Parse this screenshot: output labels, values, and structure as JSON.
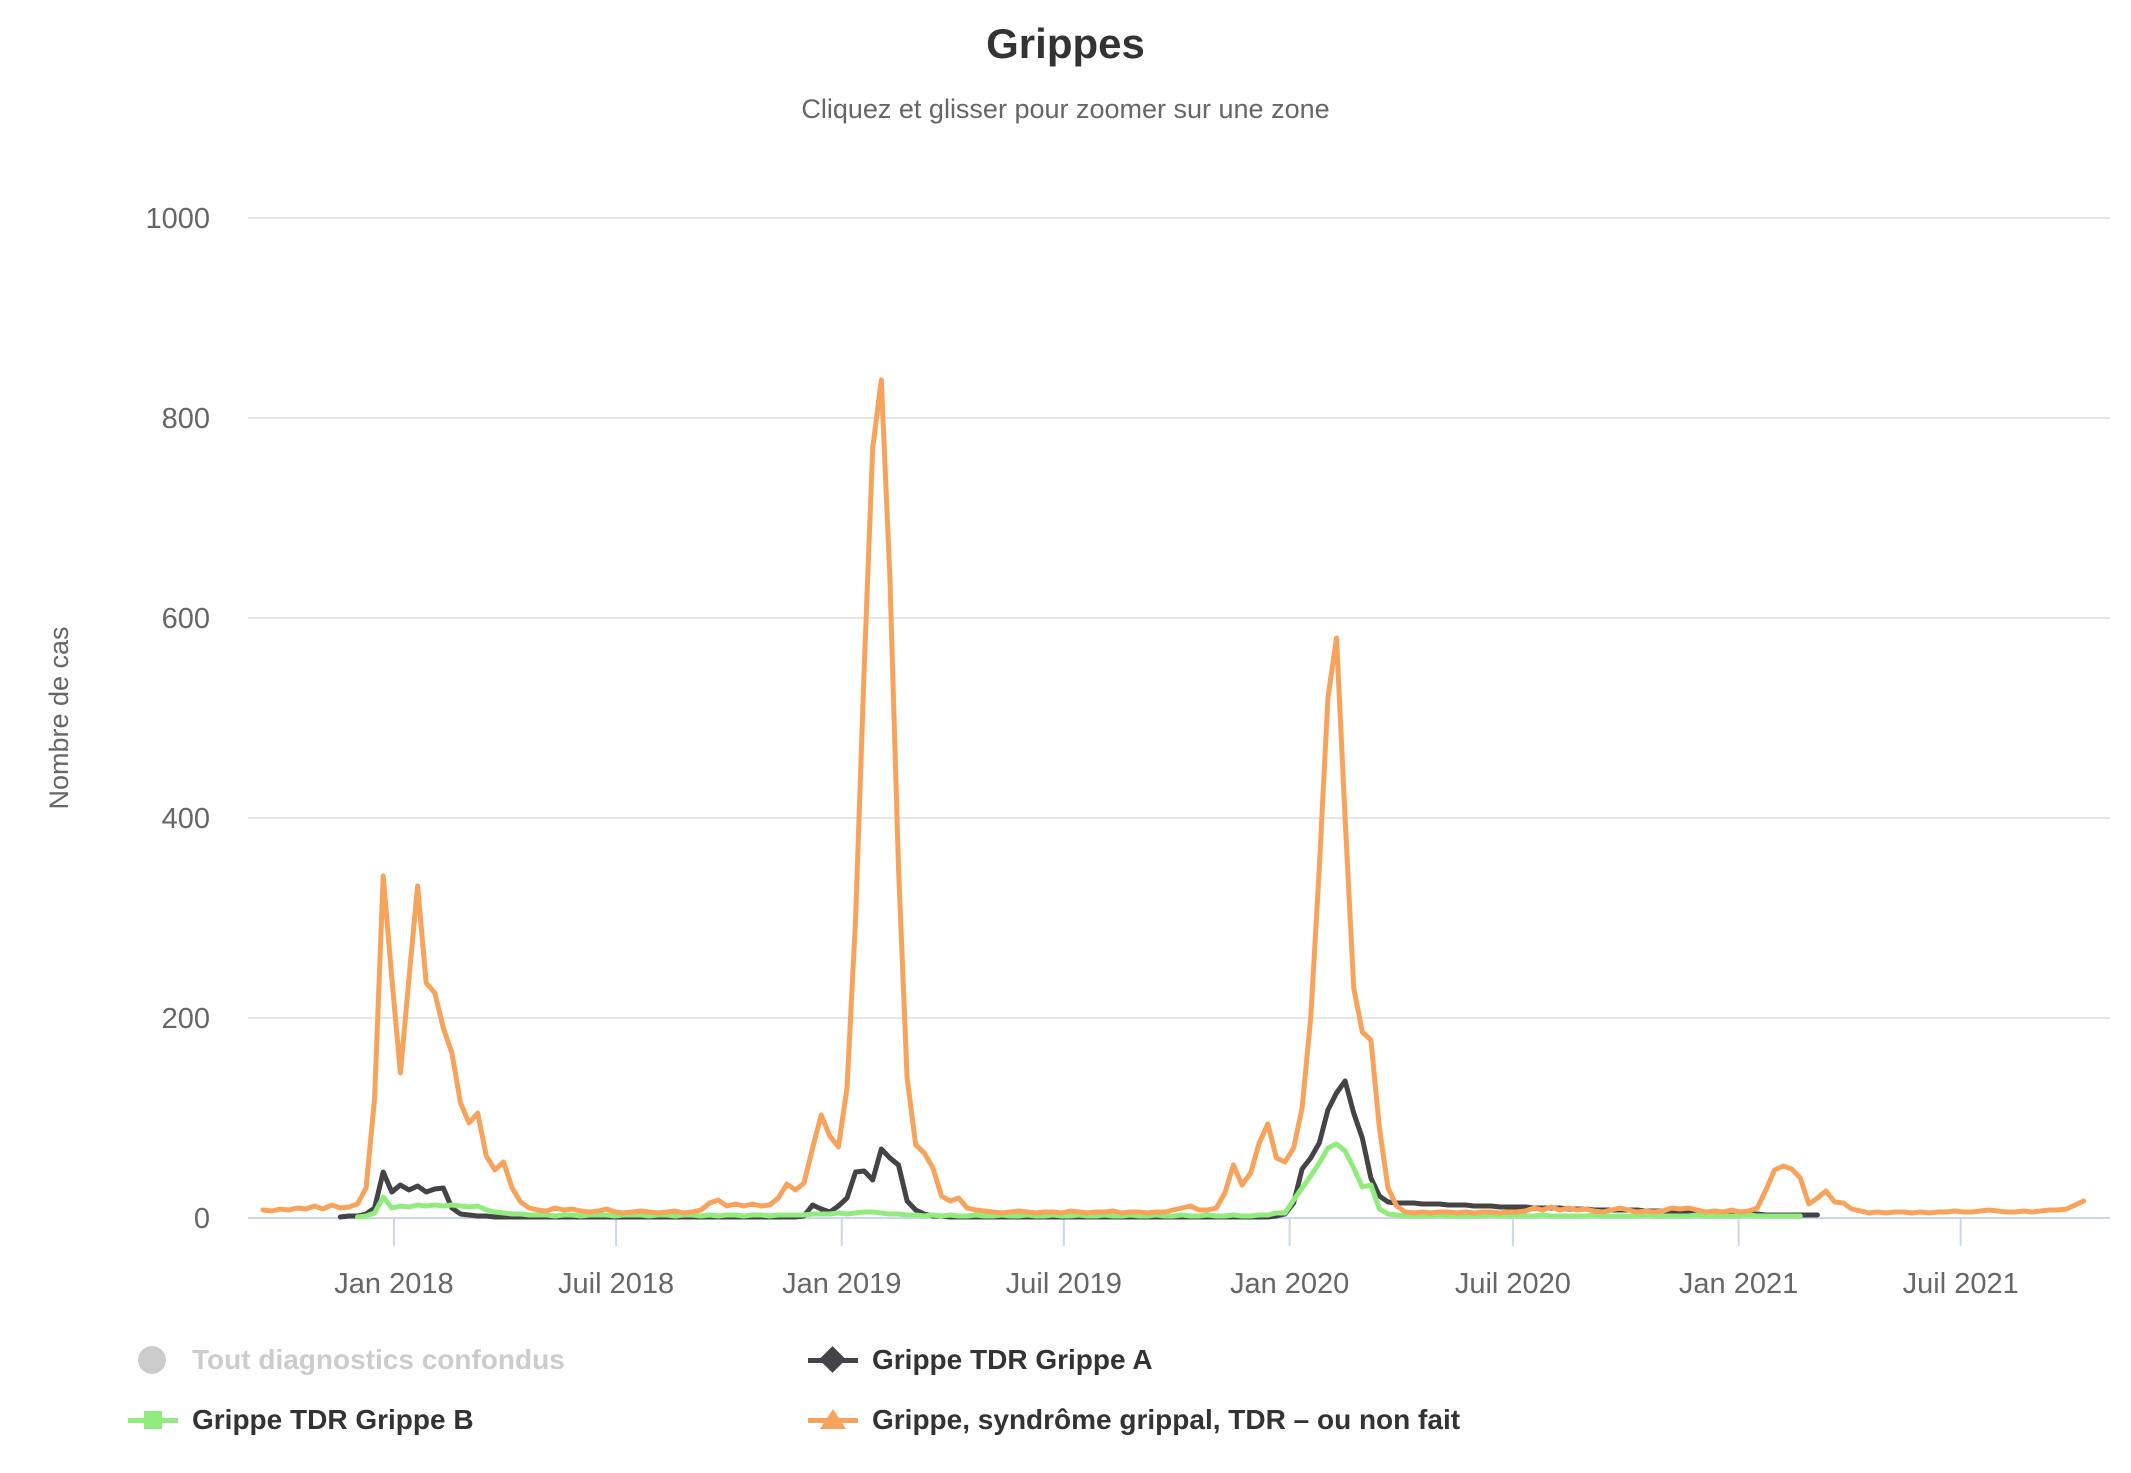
{
  "header": {
    "title": "Grippes",
    "subtitle": "Cliquez et glisser pour zoomer sur une zone"
  },
  "chart_data": {
    "type": "line",
    "title": "Grippes",
    "subtitle": "Cliquez et glisser pour zoomer sur une zone",
    "ylabel": "Nombre de cas",
    "xlabel": "",
    "ylim": [
      0,
      1000
    ],
    "y_ticks": [
      0,
      200,
      400,
      600,
      800,
      1000
    ],
    "grid": "horizontal",
    "legend_position": "bottom",
    "x_unit": "weeks since 2017-09-17",
    "x_ticks": [
      {
        "label": "Jan 2018",
        "week": 15.25
      },
      {
        "label": "Juil 2018",
        "week": 41.11
      },
      {
        "label": "Jan 2019",
        "week": 67.39
      },
      {
        "label": "Juil 2019",
        "week": 93.25
      },
      {
        "label": "Jan 2020",
        "week": 119.54
      },
      {
        "label": "Juil 2020",
        "week": 145.54
      },
      {
        "label": "Jan 2021",
        "week": 171.82
      },
      {
        "label": "Juil 2021",
        "week": 197.68
      }
    ],
    "colors": {
      "disabled": "#cccccc",
      "grippe_a": "#434348",
      "grippe_b": "#90ed7d",
      "syndrome": "#f7a35c",
      "gridline": "#e6e6e6",
      "axis_line": "#ccd6eb",
      "axis_label": "#666666"
    },
    "series": [
      {
        "name": "Tout diagnostics confondus",
        "marker": "circle",
        "color": "#cccccc",
        "visible": false,
        "values": []
      },
      {
        "name": "Grippe TDR Grippe A",
        "marker": "diamond",
        "color": "#434348",
        "visible": true,
        "values": [
          null,
          null,
          null,
          null,
          null,
          null,
          null,
          null,
          null,
          1,
          2,
          2,
          4,
          10,
          46,
          26,
          33,
          28,
          32,
          26,
          29,
          30,
          10,
          4,
          3,
          2,
          2,
          1,
          1,
          1,
          1,
          1,
          1,
          1,
          1,
          1,
          1,
          1,
          1,
          1,
          1,
          1,
          1,
          1,
          1,
          1,
          1,
          1,
          1,
          1,
          1,
          1,
          1,
          1,
          1,
          1,
          1,
          1,
          1,
          1,
          1,
          1,
          1,
          2,
          13,
          9,
          6,
          12,
          20,
          46,
          47,
          38,
          69,
          60,
          53,
          17,
          8,
          4,
          2,
          2,
          1,
          1,
          1,
          1,
          1,
          1,
          1,
          1,
          1,
          1,
          1,
          1,
          1,
          1,
          1,
          1,
          1,
          1,
          1,
          1,
          1,
          1,
          1,
          1,
          1,
          1,
          1,
          1,
          1,
          1,
          1,
          1,
          1,
          1,
          1,
          1,
          1,
          1,
          2,
          4,
          15,
          49,
          60,
          75,
          108,
          125,
          137,
          105,
          80,
          40,
          22,
          16,
          15,
          15,
          15,
          14,
          14,
          14,
          13,
          13,
          13,
          12,
          12,
          12,
          11,
          11,
          11,
          11,
          10,
          10,
          10,
          10,
          9,
          9,
          9,
          8,
          8,
          8,
          8,
          8,
          8,
          7,
          7,
          7,
          7,
          6,
          6,
          6,
          5,
          5,
          5,
          5,
          4,
          4,
          4,
          3,
          3,
          3,
          3,
          3,
          3,
          3,
          null,
          null,
          null,
          null,
          null,
          null,
          null,
          null,
          null,
          null,
          null,
          null,
          null,
          null,
          null,
          null,
          null,
          null,
          null,
          null,
          null,
          null,
          null,
          null,
          null,
          null,
          null,
          null,
          null,
          null,
          null
        ]
      },
      {
        "name": "Grippe TDR Grippe B",
        "marker": "square",
        "color": "#90ed7d",
        "visible": true,
        "values": [
          null,
          null,
          null,
          null,
          null,
          null,
          null,
          null,
          null,
          null,
          null,
          1,
          2,
          5,
          21,
          10,
          12,
          11,
          13,
          12,
          13,
          12,
          13,
          12,
          11,
          12,
          8,
          6,
          5,
          4,
          4,
          3,
          3,
          3,
          2,
          3,
          3,
          2,
          3,
          3,
          3,
          2,
          3,
          3,
          3,
          2,
          3,
          3,
          2,
          3,
          3,
          2,
          3,
          2,
          3,
          3,
          2,
          3,
          3,
          2,
          3,
          3,
          3,
          3,
          4,
          4,
          4,
          5,
          4,
          5,
          6,
          6,
          5,
          4,
          4,
          3,
          3,
          2,
          3,
          2,
          3,
          2,
          2,
          3,
          2,
          2,
          3,
          2,
          2,
          3,
          2,
          2,
          3,
          2,
          2,
          3,
          2,
          2,
          3,
          2,
          2,
          3,
          2,
          2,
          3,
          2,
          2,
          3,
          2,
          2,
          3,
          2,
          2,
          3,
          2,
          2,
          3,
          3,
          5,
          5,
          18,
          30,
          42,
          55,
          70,
          74,
          67,
          50,
          31,
          33,
          9,
          4,
          3,
          2,
          2,
          2,
          2,
          3,
          2,
          2,
          2,
          2,
          2,
          3,
          2,
          2,
          2,
          2,
          2,
          3,
          2,
          2,
          2,
          2,
          2,
          3,
          2,
          2,
          2,
          2,
          2,
          3,
          2,
          2,
          2,
          2,
          2,
          3,
          2,
          2,
          2,
          2,
          2,
          3,
          2,
          2,
          2,
          2,
          2,
          2,
          null,
          null,
          null,
          null,
          null,
          null,
          null,
          null,
          null,
          null,
          null,
          null,
          null,
          null,
          null,
          null,
          null,
          null,
          null,
          null,
          null,
          null,
          null,
          null,
          null,
          null,
          null,
          null,
          null,
          null,
          null,
          null,
          null
        ]
      },
      {
        "name": "Grippe, syndrôme grippal, TDR – ou non fait",
        "marker": "triangle",
        "color": "#f7a35c",
        "visible": true,
        "values": [
          8,
          7,
          9,
          8,
          10,
          9,
          12,
          9,
          13,
          10,
          11,
          14,
          30,
          120,
          342,
          240,
          145,
          240,
          332,
          235,
          225,
          190,
          165,
          115,
          95,
          105,
          62,
          48,
          56,
          30,
          16,
          10,
          8,
          7,
          10,
          8,
          9,
          7,
          6,
          7,
          9,
          6,
          5,
          6,
          7,
          6,
          5,
          6,
          7,
          5,
          6,
          8,
          15,
          18,
          12,
          14,
          12,
          14,
          12,
          13,
          20,
          34,
          28,
          35,
          70,
          103,
          82,
          71,
          130,
          300,
          550,
          770,
          838,
          640,
          350,
          140,
          73,
          65,
          50,
          22,
          17,
          20,
          10,
          8,
          7,
          6,
          5,
          6,
          7,
          6,
          5,
          6,
          6,
          5,
          7,
          6,
          5,
          6,
          6,
          7,
          5,
          6,
          6,
          5,
          6,
          6,
          8,
          10,
          12,
          8,
          8,
          10,
          25,
          53,
          33,
          45,
          75,
          94,
          60,
          56,
          70,
          110,
          200,
          350,
          520,
          580,
          400,
          230,
          186,
          178,
          90,
          30,
          12,
          6,
          5,
          6,
          5,
          6,
          6,
          5,
          6,
          5,
          6,
          6,
          5,
          6,
          6,
          7,
          10,
          8,
          11,
          8,
          10,
          8,
          9,
          7,
          6,
          8,
          10,
          8,
          6,
          7,
          6,
          7,
          10,
          9,
          10,
          8,
          6,
          7,
          6,
          8,
          6,
          7,
          10,
          28,
          48,
          52,
          49,
          40,
          14,
          20,
          27,
          16,
          15,
          9,
          7,
          5,
          6,
          5,
          6,
          6,
          5,
          6,
          5,
          6,
          6,
          7,
          6,
          6,
          7,
          8,
          7,
          6,
          6,
          7,
          6,
          7,
          8,
          8,
          9,
          13,
          17
        ]
      }
    ]
  },
  "legend": {
    "items": [
      {
        "label": "Tout diagnostics confondus",
        "marker": "circle",
        "color": "#cccccc",
        "disabled": true
      },
      {
        "label": "Grippe TDR Grippe A",
        "marker": "diamond",
        "color": "#434348",
        "disabled": false
      },
      {
        "label": "Grippe TDR Grippe B",
        "marker": "square",
        "color": "#90ed7d",
        "disabled": false
      },
      {
        "label": "Grippe, syndrôme grippal, TDR – ou non fait",
        "marker": "triangle",
        "color": "#f7a35c",
        "disabled": false
      }
    ]
  }
}
